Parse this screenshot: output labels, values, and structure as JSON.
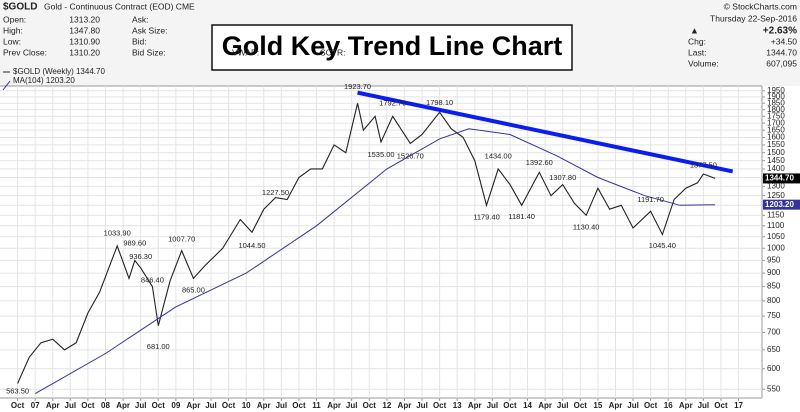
{
  "header": {
    "symbol": "$GOLD",
    "description": "Gold - Continuous Contract (EOD) CME",
    "credit": "© StockCharts.com",
    "fields": [
      [
        "Open:",
        "1313.20"
      ],
      [
        "High:",
        "1347.80"
      ],
      [
        "Low:",
        "1310.90"
      ],
      [
        "Prev Close:",
        "1310.20"
      ]
    ],
    "fields2": [
      "Ask:",
      "Ask Size:",
      "Bid:",
      "Bid Size:"
    ],
    "fields3": [
      "VWAP:",
      "SCTR:"
    ],
    "date": "Thursday  22-Sep-2016",
    "change_pct": "+2.63%",
    "stats": [
      [
        "Chg:",
        "+34.50"
      ],
      [
        "Last:",
        "1344.70"
      ],
      [
        "Volume:",
        "607,095"
      ]
    ],
    "price_tag": "1344.70",
    "ma_tag": "1203.20"
  },
  "chart_data": {
    "type": "line",
    "title": "Gold Key Trend Line Chart",
    "log_scale": true,
    "grid": true,
    "xlim": [
      "2006-07",
      "2017-05"
    ],
    "ylim": [
      530,
      1990
    ],
    "yticks": [
      550,
      600,
      650,
      700,
      750,
      800,
      850,
      900,
      950,
      1000,
      1050,
      1100,
      1150,
      1200,
      1250,
      1300,
      1350,
      1400,
      1450,
      1500,
      1550,
      1600,
      1650,
      1700,
      1750,
      1800,
      1850,
      1900,
      1950
    ],
    "xticks": [
      {
        "value": "2006-10",
        "label": "Oct"
      },
      {
        "value": "2007-01",
        "label": "07"
      },
      {
        "value": "2007-04",
        "label": "Apr"
      },
      {
        "value": "2007-07",
        "label": "Jul"
      },
      {
        "value": "2007-10",
        "label": "Oct"
      },
      {
        "value": "2008-01",
        "label": "08"
      },
      {
        "value": "2008-04",
        "label": "Apr"
      },
      {
        "value": "2008-07",
        "label": "Jul"
      },
      {
        "value": "2008-10",
        "label": "Oct"
      },
      {
        "value": "2009-01",
        "label": "09"
      },
      {
        "value": "2009-04",
        "label": "Apr"
      },
      {
        "value": "2009-07",
        "label": "Jul"
      },
      {
        "value": "2009-10",
        "label": "Oct"
      },
      {
        "value": "2010-01",
        "label": "10"
      },
      {
        "value": "2010-04",
        "label": "Apr"
      },
      {
        "value": "2010-07",
        "label": "Jul"
      },
      {
        "value": "2010-10",
        "label": "Oct"
      },
      {
        "value": "2011-01",
        "label": "11"
      },
      {
        "value": "2011-04",
        "label": "Apr"
      },
      {
        "value": "2011-07",
        "label": "Jul"
      },
      {
        "value": "2011-10",
        "label": "Oct"
      },
      {
        "value": "2012-01",
        "label": "12"
      },
      {
        "value": "2012-04",
        "label": "Apr"
      },
      {
        "value": "2012-07",
        "label": "Jul"
      },
      {
        "value": "2012-10",
        "label": "Oct"
      },
      {
        "value": "2013-01",
        "label": "13"
      },
      {
        "value": "2013-04",
        "label": "Apr"
      },
      {
        "value": "2013-07",
        "label": "Jul"
      },
      {
        "value": "2013-10",
        "label": "Oct"
      },
      {
        "value": "2014-01",
        "label": "14"
      },
      {
        "value": "2014-04",
        "label": "Apr"
      },
      {
        "value": "2014-07",
        "label": "Jul"
      },
      {
        "value": "2014-10",
        "label": "Oct"
      },
      {
        "value": "2015-01",
        "label": "15"
      },
      {
        "value": "2015-04",
        "label": "Apr"
      },
      {
        "value": "2015-07",
        "label": "Jul"
      },
      {
        "value": "2015-10",
        "label": "Oct"
      },
      {
        "value": "2016-01",
        "label": "16"
      },
      {
        "value": "2016-04",
        "label": "Apr"
      },
      {
        "value": "2016-07",
        "label": "Jul"
      },
      {
        "value": "2016-10",
        "label": "Oct"
      },
      {
        "value": "2017-01",
        "label": "17"
      }
    ],
    "series": [
      {
        "name": "$GOLD (Weekly) 1344.70",
        "color": "#222222",
        "x": [
          "2006-10",
          "2006-12",
          "2007-02",
          "2007-04",
          "2007-06",
          "2007-08",
          "2007-10",
          "2007-12",
          "2008-03",
          "2008-05",
          "2008-06",
          "2008-07",
          "2008-09",
          "2008-10",
          "2008-12",
          "2009-02",
          "2009-04",
          "2009-06",
          "2009-09",
          "2009-12",
          "2010-02",
          "2010-04",
          "2010-06",
          "2010-08",
          "2010-10",
          "2010-12",
          "2011-02",
          "2011-04",
          "2011-06",
          "2011-08",
          "2011-09",
          "2011-11",
          "2011-12",
          "2012-02",
          "2012-05",
          "2012-07",
          "2012-10",
          "2012-12",
          "2013-02",
          "2013-04",
          "2013-06",
          "2013-08",
          "2013-10",
          "2013-12",
          "2014-03",
          "2014-05",
          "2014-07",
          "2014-09",
          "2014-11",
          "2015-01",
          "2015-03",
          "2015-05",
          "2015-07",
          "2015-10",
          "2015-12",
          "2016-02",
          "2016-04",
          "2016-06",
          "2016-07",
          "2016-09"
        ],
        "values": [
          563.5,
          630,
          670,
          680,
          650,
          670,
          760,
          830,
          1010,
          880,
          950,
          920,
          850,
          720,
          870,
          990,
          880,
          930,
          1000,
          1130,
          1070,
          1180,
          1240,
          1230,
          1350,
          1400,
          1400,
          1550,
          1500,
          1850,
          1650,
          1750,
          1570,
          1750,
          1560,
          1620,
          1780,
          1660,
          1600,
          1450,
          1200,
          1400,
          1310,
          1200,
          1380,
          1250,
          1310,
          1210,
          1150,
          1290,
          1180,
          1200,
          1090,
          1170,
          1060,
          1230,
          1290,
          1320,
          1370,
          1344.7
        ]
      },
      {
        "name": "MA(104) 1203.20",
        "color": "#33339a",
        "x": [
          "2007-01",
          "2008-01",
          "2009-01",
          "2010-01",
          "2011-01",
          "2012-01",
          "2012-10",
          "2013-03",
          "2013-10",
          "2014-06",
          "2015-01",
          "2015-09",
          "2016-03",
          "2016-09"
        ],
        "values": [
          540,
          640,
          780,
          900,
          1100,
          1400,
          1590,
          1660,
          1620,
          1480,
          1350,
          1250,
          1200,
          1203.2
        ]
      }
    ],
    "trendline": {
      "color": "#0a1ef0",
      "x": [
        "2011-08",
        "2016-12"
      ],
      "values": [
        1935,
        1385
      ]
    },
    "annotations": [
      {
        "x": "2011-08",
        "value": 1923.7,
        "label": "1923.70"
      },
      {
        "x": "2011-12",
        "value": 1535,
        "label": "1535.00"
      },
      {
        "x": "2012-02",
        "value": 1792.7,
        "label": "1792.70"
      },
      {
        "x": "2012-05",
        "value": 1526.7,
        "label": "1526.70"
      },
      {
        "x": "2012-10",
        "value": 1798.1,
        "label": "1798.10"
      },
      {
        "x": "2013-08",
        "value": 1434,
        "label": "1434.00"
      },
      {
        "x": "2013-06",
        "value": 1179.4,
        "label": "1179.40"
      },
      {
        "x": "2014-03",
        "value": 1392.6,
        "label": "1392.60"
      },
      {
        "x": "2013-12",
        "value": 1181.4,
        "label": "1181.40"
      },
      {
        "x": "2014-07",
        "value": 1307.8,
        "label": "1307.80"
      },
      {
        "x": "2014-11",
        "value": 1130.4,
        "label": "1130.40"
      },
      {
        "x": "2015-10",
        "value": 1191.7,
        "label": "1191.70"
      },
      {
        "x": "2015-12",
        "value": 1045.4,
        "label": "1045.40"
      },
      {
        "x": "2016-07",
        "value": 1377.5,
        "label": "1377.50"
      },
      {
        "x": "2010-06",
        "value": 1227.5,
        "label": "1227.50"
      },
      {
        "x": "2010-02",
        "value": 1044.5,
        "label": "1044.50"
      },
      {
        "x": "2008-03",
        "value": 1033.9,
        "label": "1033.90"
      },
      {
        "x": "2008-06",
        "value": 989.6,
        "label": "989.60"
      },
      {
        "x": "2008-07",
        "value": 936.3,
        "label": "936.30"
      },
      {
        "x": "2008-09",
        "value": 846.4,
        "label": "846.40"
      },
      {
        "x": "2009-02",
        "value": 1007.7,
        "label": "1007.70"
      },
      {
        "x": "2009-04",
        "value": 865,
        "label": "865.00"
      },
      {
        "x": "2008-10",
        "value": 681,
        "label": "681.00"
      },
      {
        "x": "2006-10",
        "value": 563.5,
        "label": "563.50"
      }
    ]
  }
}
